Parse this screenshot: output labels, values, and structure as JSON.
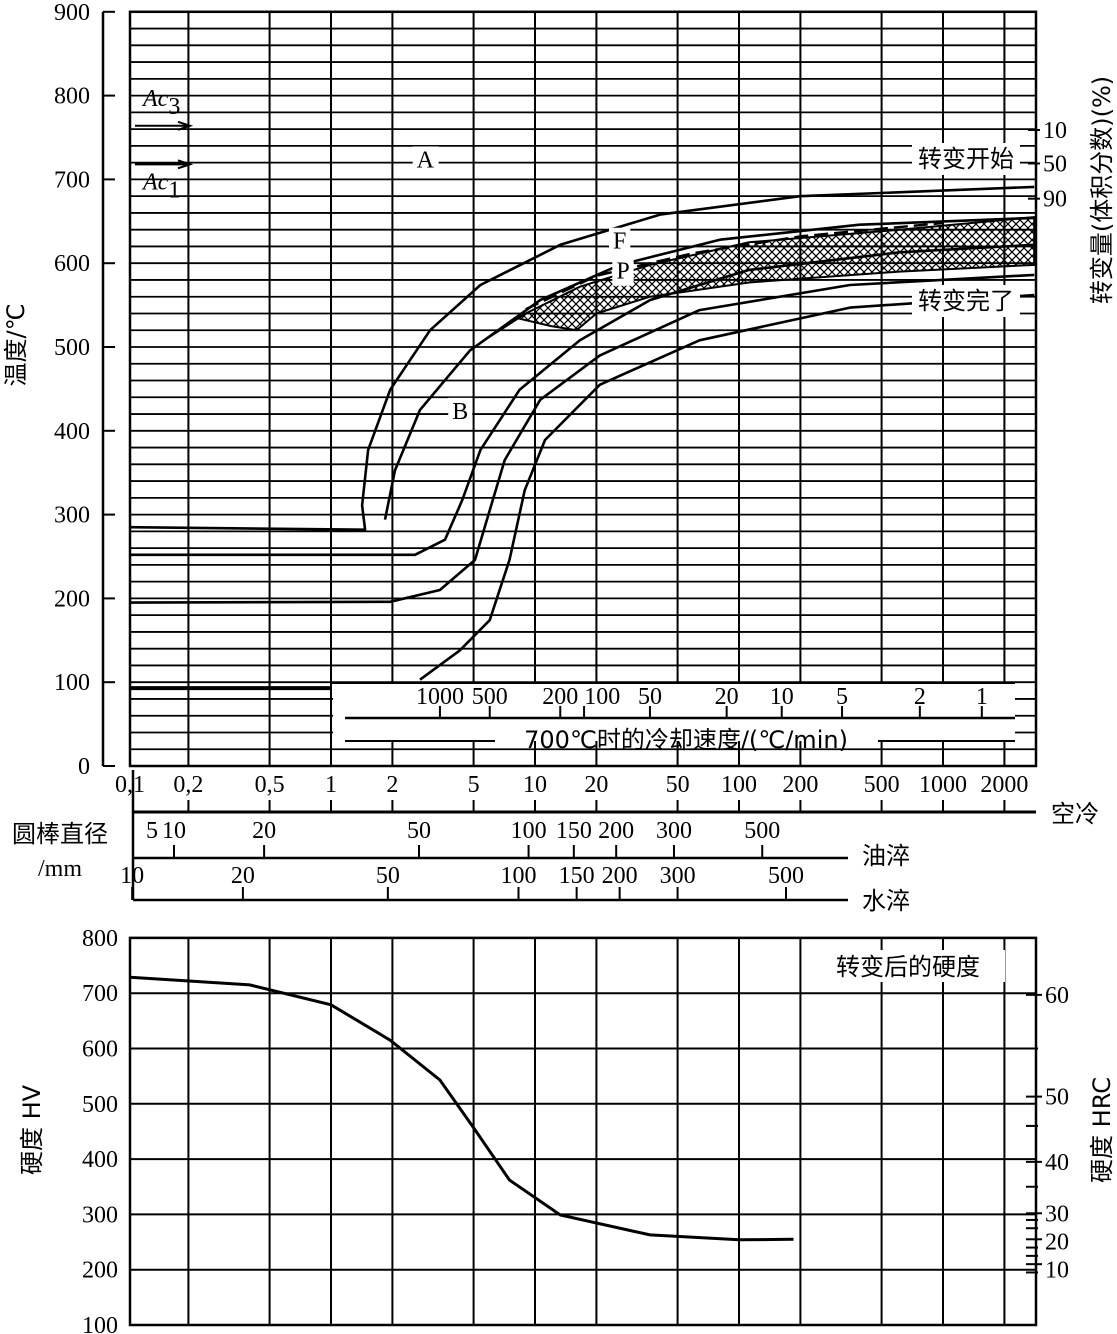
{
  "colors": {
    "ink": "#000000",
    "background": "#ffffff"
  },
  "chart_data": [
    {
      "type": "line",
      "title": "",
      "ylabel": "温度/℃",
      "y2label": "转变量(体积分数)(%)",
      "xscale": "log",
      "xlim": [
        0.1,
        2800
      ],
      "ylim": [
        0,
        900
      ],
      "grid": true,
      "x_ticks": [
        {
          "v": 0.1,
          "label": "0,1"
        },
        {
          "v": 0.2,
          "label": "0,2"
        },
        {
          "v": 0.5,
          "label": "0,5"
        },
        {
          "v": 1,
          "label": "1"
        },
        {
          "v": 2,
          "label": "2"
        },
        {
          "v": 5,
          "label": "5"
        },
        {
          "v": 10,
          "label": "10"
        },
        {
          "v": 20,
          "label": "20"
        },
        {
          "v": 50,
          "label": "50"
        },
        {
          "v": 100,
          "label": "100"
        },
        {
          "v": 200,
          "label": "200"
        },
        {
          "v": 500,
          "label": "500"
        },
        {
          "v": 1000,
          "label": "1000"
        },
        {
          "v": 2000,
          "label": "2000"
        }
      ],
      "y_ticks": [
        "0",
        "100",
        "200",
        "300",
        "400",
        "500",
        "600",
        "700",
        "800",
        "900"
      ],
      "y2_ticks": [
        {
          "label": "10",
          "T": 759
        },
        {
          "label": "50",
          "T": 719
        },
        {
          "label": "90",
          "T": 677
        }
      ],
      "y2_annotations": {
        "start": "转变开始",
        "finish": "转变完了"
      },
      "critical_points": [
        {
          "name": "Ac",
          "sub": "3",
          "T": 764
        },
        {
          "name": "Ac",
          "sub": "1",
          "T": 718
        }
      ],
      "region_labels": [
        {
          "label": "A",
          "t": 2.9,
          "T": 725
        },
        {
          "label": "F",
          "t": 26,
          "T": 628
        },
        {
          "label": "P",
          "t": 27,
          "T": 597
        },
        {
          "label": "B",
          "t": 4.3,
          "T": 425
        }
      ],
      "ms_line": {
        "T": 93,
        "t_end": 1
      },
      "series": [
        {
          "name": "curve-1",
          "points": [
            [
              0.1,
              285
            ],
            [
              1.47,
              282
            ],
            [
              1.42,
              311
            ],
            [
              1.52,
              377
            ],
            [
              1.95,
              449
            ],
            [
              3.06,
              520
            ],
            [
              5.4,
              574
            ],
            [
              13.3,
              622
            ],
            [
              41,
              658
            ],
            [
              199,
              680
            ],
            [
              2800,
              691
            ]
          ]
        },
        {
          "name": "curve-2",
          "points": [
            [
              1.84,
              294
            ],
            [
              2.06,
              353
            ],
            [
              2.73,
              425
            ],
            [
              4.8,
              496
            ],
            [
              10.6,
              556
            ],
            [
              26,
              598
            ],
            [
              80.6,
              628
            ],
            [
              390,
              646
            ],
            [
              2800,
              654
            ]
          ]
        },
        {
          "name": "curve-3",
          "points": [
            [
              0.1,
              252
            ],
            [
              2.58,
              252
            ],
            [
              3.62,
              270
            ],
            [
              4.39,
              317
            ],
            [
              5.4,
              377
            ],
            [
              8.4,
              449
            ],
            [
              16.6,
              508
            ],
            [
              36.6,
              556
            ],
            [
              112,
              592
            ],
            [
              612,
              613
            ],
            [
              2800,
              622
            ]
          ]
        },
        {
          "name": "curve-4",
          "points": [
            [
              0.1,
              195
            ],
            [
              1.95,
              196
            ],
            [
              3.42,
              210
            ],
            [
              5.08,
              246
            ],
            [
              6.0,
              305
            ],
            [
              7.1,
              365
            ],
            [
              10.6,
              437
            ],
            [
              20.8,
              490
            ],
            [
              64,
              544
            ],
            [
              350,
              574
            ],
            [
              2800,
              586
            ]
          ]
        },
        {
          "name": "curve-5",
          "points": [
            [
              2.73,
              103
            ],
            [
              4.28,
              138
            ],
            [
              6.0,
              174
            ],
            [
              7.5,
              246
            ],
            [
              8.9,
              329
            ],
            [
              11.2,
              389
            ],
            [
              20.8,
              455
            ],
            [
              64,
              508
            ],
            [
              350,
              547
            ],
            [
              2800,
              562
            ]
          ]
        }
      ],
      "pearlite_band": {
        "upper": [
          [
            5.4,
            505
          ],
          [
            9,
            540
          ],
          [
            16.6,
            572
          ],
          [
            36.6,
            598
          ],
          [
            112,
            625
          ],
          [
            612,
            640
          ],
          [
            2800,
            655
          ]
        ],
        "lower": [
          [
            2800,
            598
          ],
          [
            612,
            590
          ],
          [
            112,
            577
          ],
          [
            36.6,
            560
          ],
          [
            20,
            540
          ],
          [
            16,
            520
          ],
          [
            12,
            525
          ],
          [
            8,
            535
          ]
        ],
        "dashed_upper": [
          [
            9,
            545
          ],
          [
            20,
            585
          ],
          [
            60,
            612
          ],
          [
            200,
            632
          ],
          [
            1000,
            648
          ]
        ]
      },
      "cooling_rate_scale": {
        "title": "700℃时的冷却速度/(℃/min)",
        "ticks": [
          {
            "label": "1000",
            "t": 3.42
          },
          {
            "label": "500",
            "t": 6.0
          },
          {
            "label": "200",
            "t": 13.3
          },
          {
            "label": "100",
            "t": 17.4
          },
          {
            "label": "50",
            "t": 36.6
          },
          {
            "label": "20",
            "t": 87
          },
          {
            "label": "10",
            "t": 162
          },
          {
            "label": "5",
            "t": 320
          },
          {
            "label": "2",
            "t": 770
          },
          {
            "label": "1",
            "t": 1550
          }
        ]
      }
    },
    {
      "type": "line",
      "title": "转变后的硬度",
      "ylabel": "硬度 HV",
      "y2label": "硬度 HRC",
      "xscale": "log",
      "xlim": [
        0.1,
        2800
      ],
      "ylim": [
        100,
        800
      ],
      "grid": true,
      "y_ticks": [
        "100",
        "200",
        "300",
        "400",
        "500",
        "600",
        "700",
        "800"
      ],
      "y2_ticks": [
        {
          "label": "60",
          "hv": 697
        },
        {
          "label": "50",
          "hv": 513
        },
        {
          "label": "40",
          "hv": 395
        },
        {
          "label": "30",
          "hv": 302
        },
        {
          "label": "20",
          "hv": 255
        },
        {
          "label": "10",
          "hv": 210
        }
      ],
      "y2_minor_hv": [
        600,
        460,
        350,
        290,
        275,
        240,
        225,
        195
      ],
      "series": [
        {
          "name": "hardness",
          "points": [
            [
              0.1,
              729
            ],
            [
              0.4,
              715
            ],
            [
              1,
              679
            ],
            [
              1.95,
              615
            ],
            [
              3.42,
              543
            ],
            [
              5.08,
              453
            ],
            [
              7.5,
              362
            ],
            [
              13.3,
              299
            ],
            [
              36.6,
              263
            ],
            [
              100,
              254
            ],
            [
              185,
              255
            ]
          ]
        }
      ]
    }
  ],
  "diameter_scales": {
    "title": "圆棒直径",
    "unit": "/mm",
    "air": {
      "label": "空冷"
    },
    "oil": {
      "label": "油淬",
      "ticks": [
        {
          "label": "5",
          "t": 0.1,
          "notick": true
        },
        {
          "label": "10",
          "t": 0.17
        },
        {
          "label": "20",
          "t": 0.47
        },
        {
          "label": "50",
          "t": 2.7
        },
        {
          "label": "100",
          "t": 9.3
        },
        {
          "label": "150",
          "t": 15.5
        },
        {
          "label": "200",
          "t": 25
        },
        {
          "label": "300",
          "t": 48
        },
        {
          "label": "500",
          "t": 130
        }
      ]
    },
    "water": {
      "label": "水淬",
      "ticks": [
        {
          "label": "10",
          "t": 0.106
        },
        {
          "label": "20",
          "t": 0.37
        },
        {
          "label": "50",
          "t": 1.9
        },
        {
          "label": "100",
          "t": 8.3
        },
        {
          "label": "150",
          "t": 16
        },
        {
          "label": "200",
          "t": 26
        },
        {
          "label": "300",
          "t": 50
        },
        {
          "label": "500",
          "t": 170
        }
      ]
    }
  }
}
